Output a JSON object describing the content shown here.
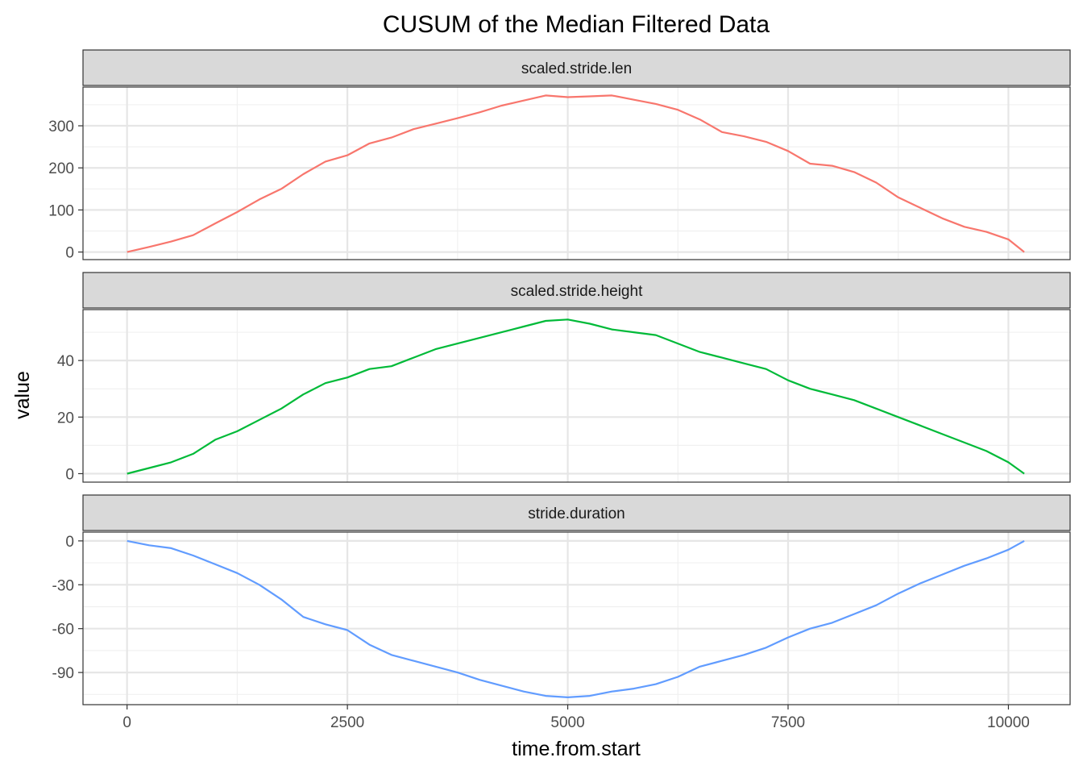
{
  "chart_data": {
    "type": "line",
    "title": "CUSUM of the Median Filtered Data",
    "xlabel": "time.from.start",
    "ylabel": "value",
    "xlim": [
      -500,
      10700
    ],
    "x_ticks": [
      0,
      2500,
      5000,
      7500,
      10000
    ],
    "x_tick_labels": [
      "0",
      "2500",
      "5000",
      "7500",
      "10000"
    ],
    "grid": true,
    "legend": "none",
    "facets": [
      {
        "strip": "scaled.stride.len",
        "color": "#F8766D",
        "ylim": [
          -18,
          392
        ],
        "y_ticks": [
          0,
          100,
          200,
          300
        ],
        "y_tick_labels": [
          "0",
          "100",
          "200",
          "300"
        ],
        "x": [
          0,
          250,
          500,
          750,
          1000,
          1250,
          1500,
          1750,
          2000,
          2250,
          2500,
          2750,
          3000,
          3250,
          3500,
          3750,
          4000,
          4250,
          4500,
          4750,
          5000,
          5250,
          5500,
          5750,
          6000,
          6250,
          6500,
          6750,
          7000,
          7250,
          7500,
          7750,
          8000,
          8250,
          8500,
          8750,
          9000,
          9250,
          9500,
          9750,
          10000,
          10180
        ],
        "values": [
          0,
          12,
          25,
          40,
          68,
          95,
          125,
          150,
          185,
          215,
          230,
          258,
          272,
          292,
          305,
          318,
          332,
          348,
          360,
          372,
          368,
          370,
          372,
          362,
          352,
          338,
          315,
          285,
          275,
          262,
          240,
          210,
          205,
          190,
          165,
          130,
          105,
          80,
          60,
          48,
          30,
          0
        ]
      },
      {
        "strip": "scaled.stride.height",
        "color": "#00BA38",
        "ylim": [
          -3,
          58
        ],
        "y_ticks": [
          0,
          20,
          40
        ],
        "y_tick_labels": [
          "0",
          "20",
          "40"
        ],
        "x": [
          0,
          250,
          500,
          750,
          1000,
          1250,
          1500,
          1750,
          2000,
          2250,
          2500,
          2750,
          3000,
          3250,
          3500,
          3750,
          4000,
          4250,
          4500,
          4750,
          5000,
          5250,
          5500,
          5750,
          6000,
          6250,
          6500,
          6750,
          7000,
          7250,
          7500,
          7750,
          8000,
          8250,
          8500,
          8750,
          9000,
          9250,
          9500,
          9750,
          10000,
          10180
        ],
        "values": [
          0,
          2,
          4,
          7,
          12,
          15,
          19,
          23,
          28,
          32,
          34,
          37,
          38,
          41,
          44,
          46,
          48,
          50,
          52,
          54,
          54.5,
          53,
          51,
          50,
          49,
          46,
          43,
          41,
          39,
          37,
          33,
          30,
          28,
          26,
          23,
          20,
          17,
          14,
          11,
          8,
          4,
          0
        ]
      },
      {
        "strip": "stride.duration",
        "color": "#619CFF",
        "ylim": [
          -112,
          6
        ],
        "y_ticks": [
          0,
          -30,
          -60,
          -90
        ],
        "y_tick_labels": [
          "0",
          "-30",
          "-60",
          "-90"
        ],
        "x": [
          0,
          250,
          500,
          750,
          1000,
          1250,
          1500,
          1750,
          2000,
          2250,
          2500,
          2750,
          3000,
          3250,
          3500,
          3750,
          4000,
          4250,
          4500,
          4750,
          5000,
          5250,
          5500,
          5750,
          6000,
          6250,
          6500,
          6750,
          7000,
          7250,
          7500,
          7750,
          8000,
          8250,
          8500,
          8750,
          9000,
          9250,
          9500,
          9750,
          10000,
          10180
        ],
        "values": [
          0,
          -3,
          -5,
          -10,
          -16,
          -22,
          -30,
          -40,
          -52,
          -57,
          -61,
          -71,
          -78,
          -82,
          -86,
          -90,
          -95,
          -99,
          -103,
          -106,
          -107,
          -106,
          -103,
          -101,
          -98,
          -93,
          -86,
          -82,
          -78,
          -73,
          -66,
          -60,
          -56,
          -50,
          -44,
          -36,
          -29,
          -23,
          -17,
          -12,
          -6,
          0
        ]
      }
    ]
  }
}
